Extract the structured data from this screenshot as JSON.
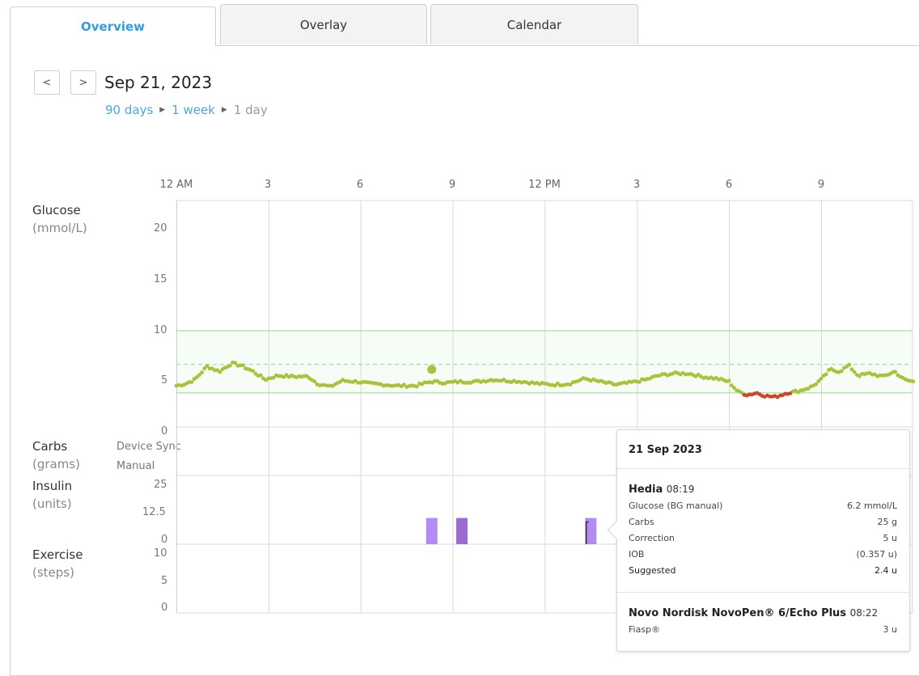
{
  "tabs": [
    {
      "label": "Overview",
      "active": true
    },
    {
      "label": "Overlay",
      "active": false
    },
    {
      "label": "Calendar",
      "active": false
    }
  ],
  "nav": {
    "prev_label": "<",
    "next_label": ">",
    "date": "Sep 21, 2023"
  },
  "breadcrumbs": {
    "days90": "90 days",
    "week": "1 week",
    "day": "1 day"
  },
  "time_axis": [
    "12 AM",
    "3",
    "6",
    "9",
    "12 PM",
    "3",
    "6",
    "9"
  ],
  "glucose": {
    "label": "Glucose",
    "unit": "(mmol/L)",
    "ticks": [
      "20",
      "15",
      "10",
      "5",
      "0"
    ],
    "target_low": 3.9,
    "target_high": 10,
    "target_mid": 6.7,
    "bg_manual": {
      "hour": 8.32,
      "value": 6.2
    },
    "low_threshold": 3.9,
    "cgm_keypoints": [
      [
        0,
        4.6
      ],
      [
        0.3,
        4.8
      ],
      [
        0.6,
        5.2
      ],
      [
        1.0,
        6.5
      ],
      [
        1.4,
        6.0
      ],
      [
        1.8,
        6.8
      ],
      [
        2.1,
        6.6
      ],
      [
        2.5,
        6.0
      ],
      [
        2.9,
        5.2
      ],
      [
        3.3,
        5.6
      ],
      [
        3.8,
        5.5
      ],
      [
        4.3,
        5.5
      ],
      [
        4.6,
        4.8
      ],
      [
        5.0,
        4.5
      ],
      [
        5.4,
        5.1
      ],
      [
        5.9,
        5.0
      ],
      [
        6.3,
        4.8
      ],
      [
        6.8,
        4.7
      ],
      [
        7.2,
        4.6
      ],
      [
        7.8,
        4.6
      ],
      [
        8.3,
        5.0
      ],
      [
        8.8,
        4.9
      ],
      [
        9.3,
        5.0
      ],
      [
        9.8,
        5.0
      ],
      [
        10.3,
        5.2
      ],
      [
        10.8,
        5.1
      ],
      [
        11.3,
        5.0
      ],
      [
        11.8,
        4.8
      ],
      [
        12.3,
        4.7
      ],
      [
        12.8,
        4.8
      ],
      [
        13.3,
        5.3
      ],
      [
        13.8,
        5.0
      ],
      [
        14.3,
        4.7
      ],
      [
        14.8,
        4.9
      ],
      [
        15.3,
        5.2
      ],
      [
        15.7,
        5.6
      ],
      [
        16.2,
        5.8
      ],
      [
        16.7,
        5.8
      ],
      [
        17.1,
        5.5
      ],
      [
        17.6,
        5.3
      ],
      [
        18.0,
        5.0
      ],
      [
        18.3,
        4.0
      ],
      [
        18.6,
        3.7
      ],
      [
        18.9,
        3.9
      ],
      [
        19.2,
        3.6
      ],
      [
        19.5,
        3.5
      ],
      [
        19.9,
        3.9
      ],
      [
        20.3,
        4.1
      ],
      [
        20.7,
        4.5
      ],
      [
        21.0,
        5.2
      ],
      [
        21.3,
        6.2
      ],
      [
        21.6,
        6.0
      ],
      [
        21.9,
        6.6
      ],
      [
        22.2,
        5.6
      ],
      [
        22.6,
        5.8
      ],
      [
        23.0,
        5.5
      ],
      [
        23.4,
        6.0
      ],
      [
        23.7,
        5.2
      ],
      [
        24.0,
        5.0
      ]
    ]
  },
  "carbs": {
    "label": "Carbs",
    "unit": "(grams)",
    "sources": [
      "Device Sync",
      "Manual"
    ]
  },
  "insulin": {
    "label": "Insulin",
    "unit": "(units)",
    "ticks": [
      "25",
      "12.5",
      "0"
    ],
    "doses": [
      {
        "hour": 8.32,
        "value": 10,
        "color": "#b18cf2"
      },
      {
        "hour": 9.3,
        "value": 10,
        "color": "#9b6bd1"
      },
      {
        "hour": 13.5,
        "value": 10,
        "color": "#b18cf2"
      }
    ],
    "suggested_marker_hour": 13.35
  },
  "exercise": {
    "label": "Exercise",
    "unit": "(steps)",
    "ticks": [
      "10",
      "5",
      "0"
    ]
  },
  "colors": {
    "cgm": "#a6c33a",
    "low": "#d0442a",
    "target": "#7fd67f",
    "dose_light": "#b18cf2",
    "dose_dark": "#9b6bd1"
  },
  "tooltip": {
    "date": "21 Sep 2023",
    "app": {
      "name": "Hedia",
      "time": "08:19",
      "rows": [
        {
          "label": "Glucose (BG manual)",
          "value": "6.2 mmol/L"
        },
        {
          "label": "Carbs",
          "value": "25 g"
        },
        {
          "label": "Correction",
          "value": "5 u"
        },
        {
          "label": "IOB",
          "value": "(0.357 u)"
        },
        {
          "label": "Suggested",
          "value": "2.4 u"
        }
      ]
    },
    "pen": {
      "name": "Novo Nordisk NovoPen® 6/Echo Plus",
      "time": "08:22",
      "rows": [
        {
          "label": "Fiasp®",
          "value": "3 u"
        }
      ]
    }
  }
}
